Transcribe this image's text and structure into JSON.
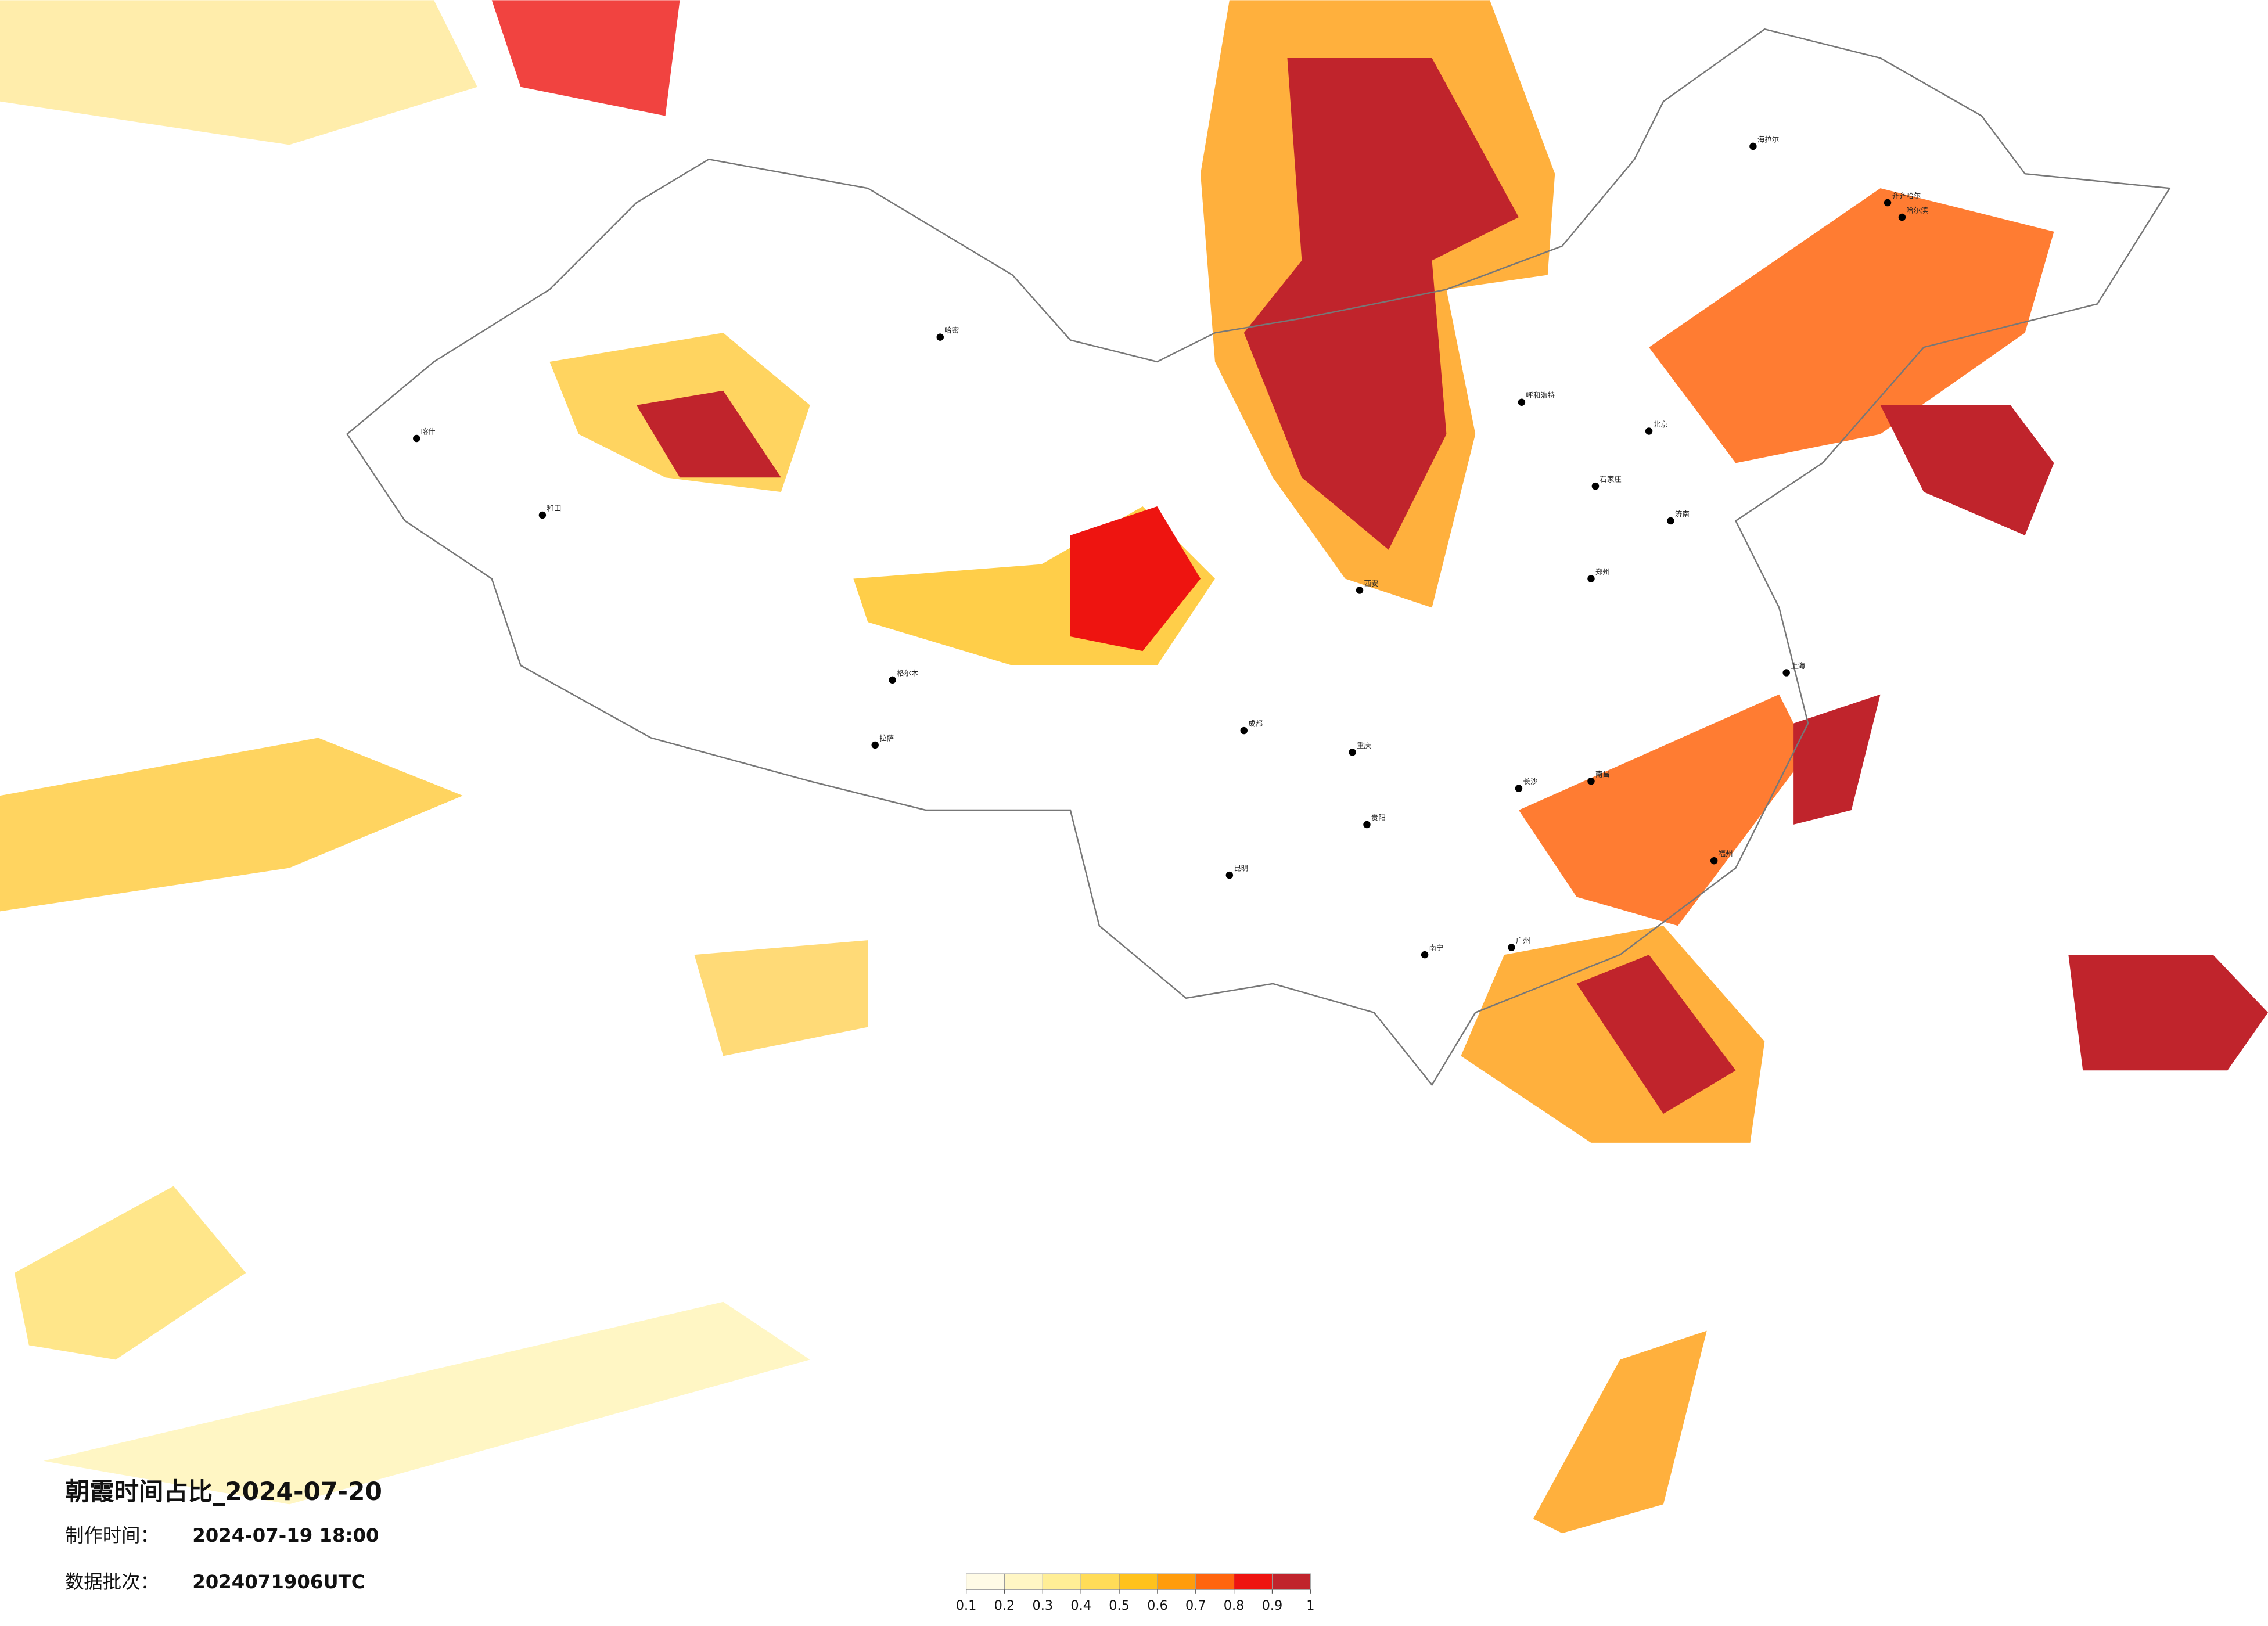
{
  "title": "朝霞时间占比_2024-07-20",
  "production_time": {
    "label": "制作时间：",
    "value": "2024-07-19 18:00"
  },
  "data_batch": {
    "label": "数据批次：",
    "value": "2024071906UTC"
  },
  "colorbar": {
    "ticks": [
      0.1,
      0.2,
      0.3,
      0.4,
      0.5,
      0.6,
      0.7,
      0.8,
      0.9,
      1
    ],
    "colors": [
      "#fffbe6",
      "#fff6c4",
      "#ffee96",
      "#ffdc58",
      "#ffc21c",
      "#ff9c0c",
      "#ff650e",
      "#ee1410",
      "#c0242c"
    ]
  },
  "cities": [
    "海拉尔",
    "齐齐哈尔",
    "哈尔滨",
    "呼和浩特",
    "北京",
    "石家庄",
    "济南",
    "郑州",
    "西安",
    "成都",
    "重庆",
    "长沙",
    "贵阳",
    "昆明",
    "南宁",
    "拉萨",
    "和田",
    "喀什",
    "哈密",
    "格尔木",
    "南昌",
    "福州",
    "广州",
    "上海"
  ]
}
